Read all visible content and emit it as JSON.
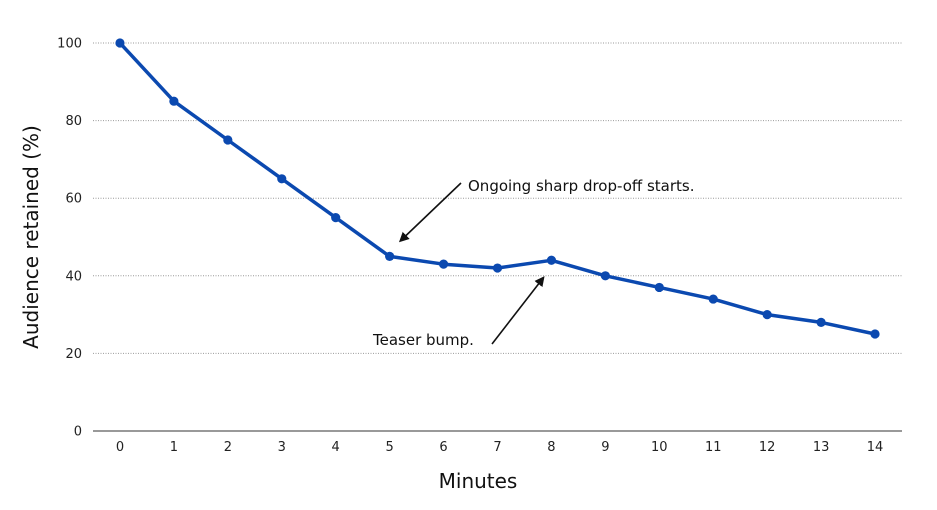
{
  "colors": {
    "series": "#0b49b0",
    "grid": "#9a9a9a",
    "annotation": "#111111"
  },
  "chart_data": {
    "type": "line",
    "title": "",
    "xlabel": "Minutes",
    "ylabel": "Audience retained (%)",
    "x": [
      0,
      1,
      2,
      3,
      4,
      5,
      6,
      7,
      8,
      9,
      10,
      11,
      12,
      13,
      14
    ],
    "series": [
      {
        "values": [
          100,
          85,
          75,
          65,
          55,
          45,
          43,
          42,
          44,
          40,
          37,
          34,
          30,
          28,
          25
        ]
      }
    ],
    "xlim": [
      -0.5,
      14.5
    ],
    "ylim": [
      0,
      100
    ],
    "yticks": [
      0,
      20,
      40,
      60,
      80,
      100
    ],
    "grid": "horizontal-dotted",
    "legend": "none",
    "annotations": [
      {
        "text": "Ongoing sharp drop-off starts.",
        "points_to": {
          "x": 5.2,
          "y": 49
        }
      },
      {
        "text": "Teaser bump.",
        "points_to": {
          "x": 7.85,
          "y": 39.5
        }
      }
    ]
  }
}
